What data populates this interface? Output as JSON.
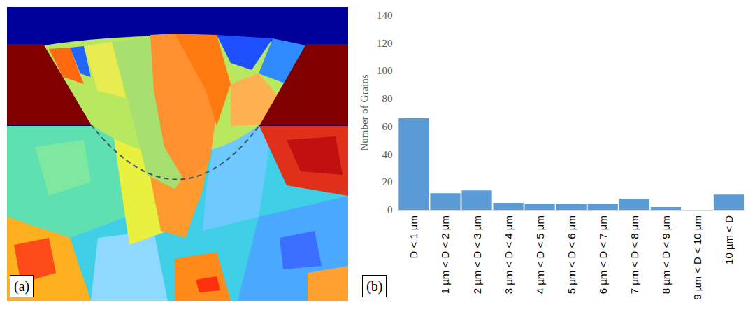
{
  "chart_data": {
    "type": "bar",
    "categories": [
      "D < 1 µm",
      "1 µm < D < 2 µm",
      "2 µm < D < 3 µm",
      "3 µm < D < 4 µm",
      "4 µm < D < 5 µm",
      "5 µm < D < 6 µm",
      "6 µm < D < 7 µm",
      "7 µm < D < 8 µm",
      "8 µm < D < 9 µm",
      "9 µm < D < 10 µm",
      "10 µm < D"
    ],
    "values": [
      66,
      12,
      14,
      5,
      4,
      4,
      4,
      8,
      2,
      0,
      11
    ],
    "color": "#5b9bd5",
    "y_label": "Number of Grains",
    "ylim": [
      0,
      140
    ],
    "yticks": [
      0,
      20,
      40,
      60,
      80,
      100,
      120,
      140
    ],
    "grid": false
  },
  "panel_labels": [
    "(a)",
    "(b)"
  ]
}
